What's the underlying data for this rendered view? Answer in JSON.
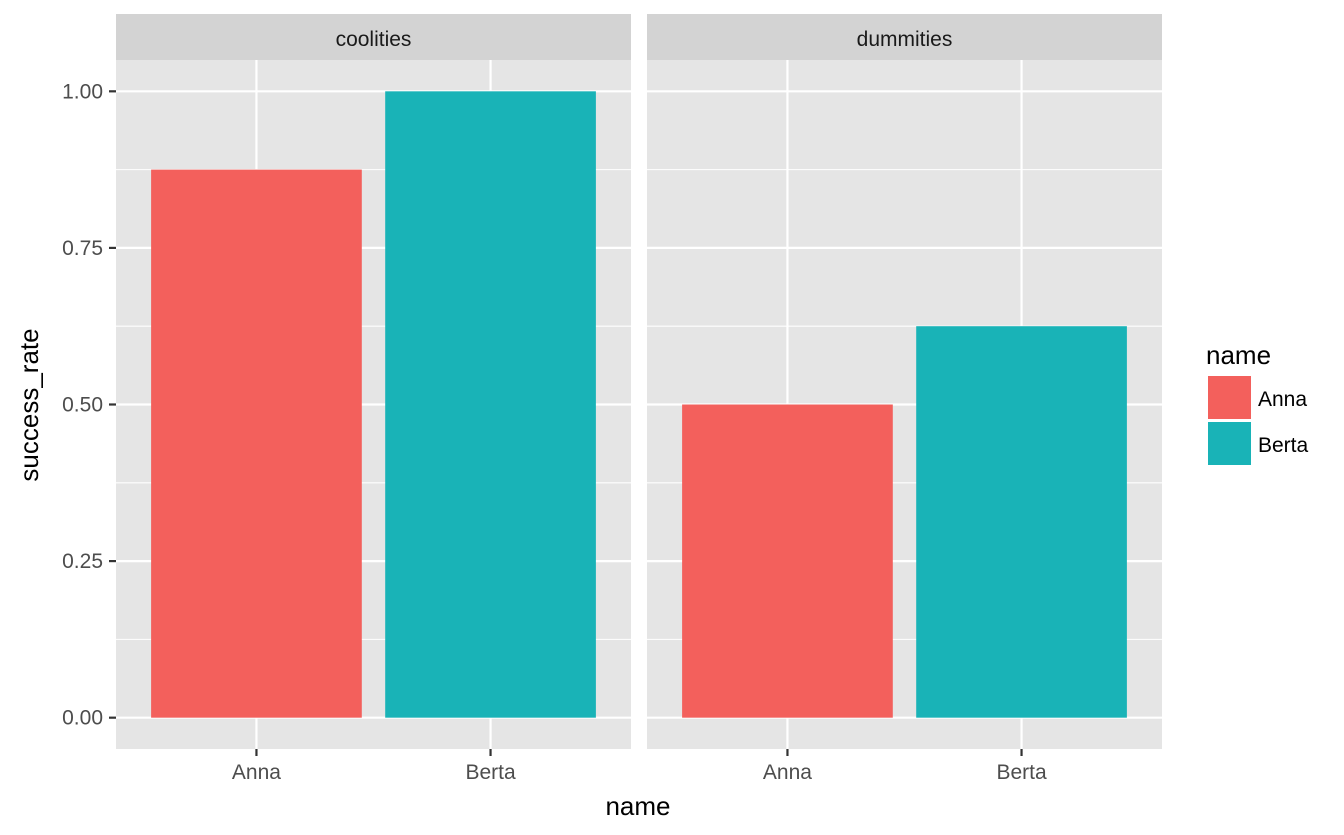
{
  "chart_data": {
    "type": "bar",
    "facets": [
      {
        "label": "coolities",
        "categories": [
          "Anna",
          "Berta"
        ],
        "values": [
          0.875,
          1.0
        ]
      },
      {
        "label": "dummities",
        "categories": [
          "Anna",
          "Berta"
        ],
        "values": [
          0.5,
          0.625
        ]
      }
    ],
    "xlabel": "name",
    "ylabel": "success_rate",
    "ylim": [
      -0.05,
      1.05
    ],
    "yticks": [
      0.0,
      0.25,
      0.5,
      0.75,
      1.0
    ],
    "ytick_labels": [
      "0.00",
      "0.25",
      "0.50",
      "0.75",
      "1.00"
    ],
    "grid": true,
    "legend": {
      "title": "name",
      "position": "right",
      "entries": [
        {
          "label": "Anna",
          "color": "#F3605C"
        },
        {
          "label": "Berta",
          "color": "#19B3B7"
        }
      ]
    },
    "colors": {
      "panel_background": "#E5E5E5",
      "strip_background": "#D3D3D3",
      "gridline": "#FFFFFF",
      "text": "#000000",
      "tick_text": "#4D4D4D"
    }
  }
}
